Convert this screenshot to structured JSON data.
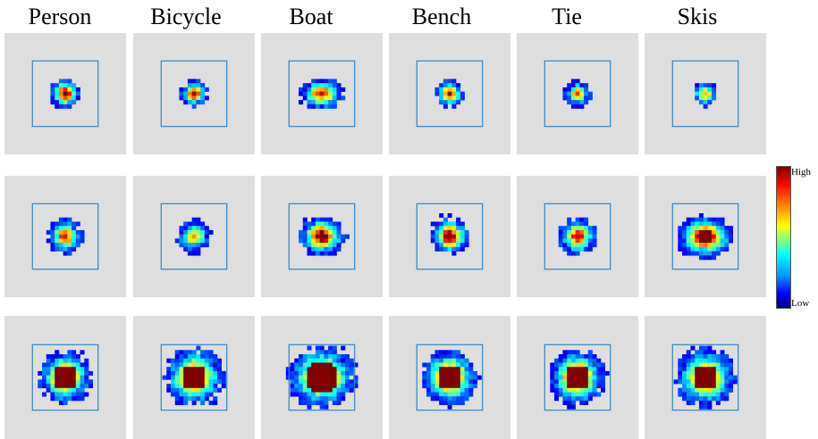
{
  "chart_data": {
    "type": "heatmap",
    "columns": [
      "Person",
      "Bicycle",
      "Boat",
      "Bench",
      "Tie",
      "Skis"
    ],
    "rows": 3,
    "colorbar": {
      "high_label": "High",
      "low_label": "Low",
      "colormap": "jet"
    },
    "panels": [
      [
        {
          "spread": 0.5,
          "aspect": 1.0,
          "core": 0.35,
          "peak": 0.95
        },
        {
          "spread": 0.44,
          "aspect": 1.0,
          "core": 0.25,
          "peak": 0.88
        },
        {
          "spread": 0.52,
          "aspect": 1.4,
          "core": 0.3,
          "peak": 0.85
        },
        {
          "spread": 0.45,
          "aspect": 1.0,
          "core": 0.25,
          "peak": 0.9
        },
        {
          "spread": 0.42,
          "aspect": 1.0,
          "core": 0.22,
          "peak": 0.75
        },
        {
          "spread": 0.44,
          "aspect": 1.1,
          "core": 0.2,
          "peak": 0.6
        }
      ],
      [
        {
          "spread": 0.56,
          "aspect": 1.0,
          "core": 0.3,
          "peak": 0.8
        },
        {
          "spread": 0.55,
          "aspect": 1.0,
          "core": 0.3,
          "peak": 0.65
        },
        {
          "spread": 0.66,
          "aspect": 1.2,
          "core": 0.35,
          "peak": 0.92
        },
        {
          "spread": 0.62,
          "aspect": 1.0,
          "core": 0.35,
          "peak": 0.95
        },
        {
          "spread": 0.62,
          "aspect": 1.0,
          "core": 0.3,
          "peak": 0.85
        },
        {
          "spread": 0.7,
          "aspect": 1.3,
          "core": 0.45,
          "peak": 1.0
        }
      ],
      [
        {
          "spread": 0.85,
          "aspect": 1.0,
          "core": 0.75,
          "peak": 1.0
        },
        {
          "spread": 0.95,
          "aspect": 1.0,
          "core": 0.7,
          "peak": 0.98
        },
        {
          "spread": 1.0,
          "aspect": 1.1,
          "core": 0.8,
          "peak": 0.97
        },
        {
          "spread": 0.92,
          "aspect": 1.0,
          "core": 0.7,
          "peak": 0.96
        },
        {
          "spread": 0.9,
          "aspect": 1.0,
          "core": 0.7,
          "peak": 1.0
        },
        {
          "spread": 0.95,
          "aspect": 1.0,
          "core": 0.7,
          "peak": 0.97
        }
      ]
    ]
  }
}
